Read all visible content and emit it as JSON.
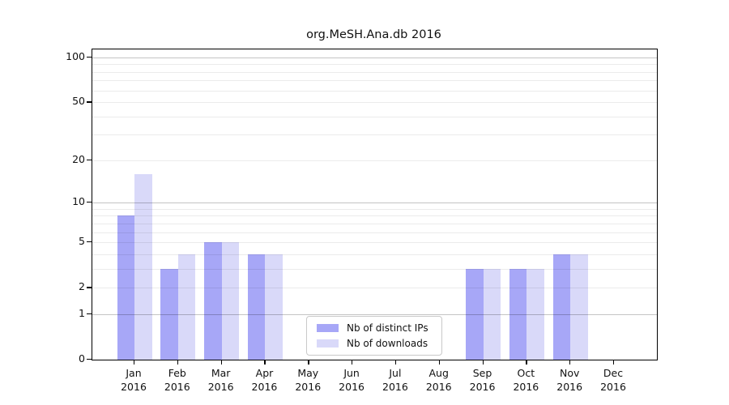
{
  "chart_data": {
    "type": "bar",
    "title": "org.MeSH.Ana.db 2016",
    "categories": [
      "Jan",
      "Feb",
      "Mar",
      "Apr",
      "May",
      "Jun",
      "Jul",
      "Aug",
      "Sep",
      "Oct",
      "Nov",
      "Dec"
    ],
    "category_year": "2016",
    "series": [
      {
        "name": "Nb of distinct IPs",
        "color": "#a7a7f7",
        "values": [
          8,
          3,
          5,
          4,
          0,
          0,
          0,
          0,
          3,
          3,
          4,
          0
        ]
      },
      {
        "name": "Nb of downloads",
        "color": "#d9d9f9",
        "values": [
          16,
          4,
          5,
          4,
          0,
          0,
          0,
          0,
          3,
          3,
          4,
          0
        ]
      }
    ],
    "yscale": "log1p",
    "ylim": [
      0,
      114
    ],
    "yticks": [
      0,
      1,
      2,
      5,
      10,
      20,
      50,
      100
    ],
    "minor_gridlines": [
      2,
      3,
      4,
      5,
      6,
      7,
      8,
      9,
      20,
      30,
      40,
      50,
      60,
      70,
      80,
      90
    ],
    "major_gridlines": [
      1,
      10,
      100
    ],
    "grid": "on",
    "legend_position": "lower center",
    "xlabel": "",
    "ylabel": ""
  },
  "colors": {
    "minor_gridline": "rgba(0,0,0,0.08)",
    "major_gridline": "rgba(0,0,0,0.23)",
    "axis": "#000000",
    "text": "#111111",
    "background": "#ffffff"
  }
}
